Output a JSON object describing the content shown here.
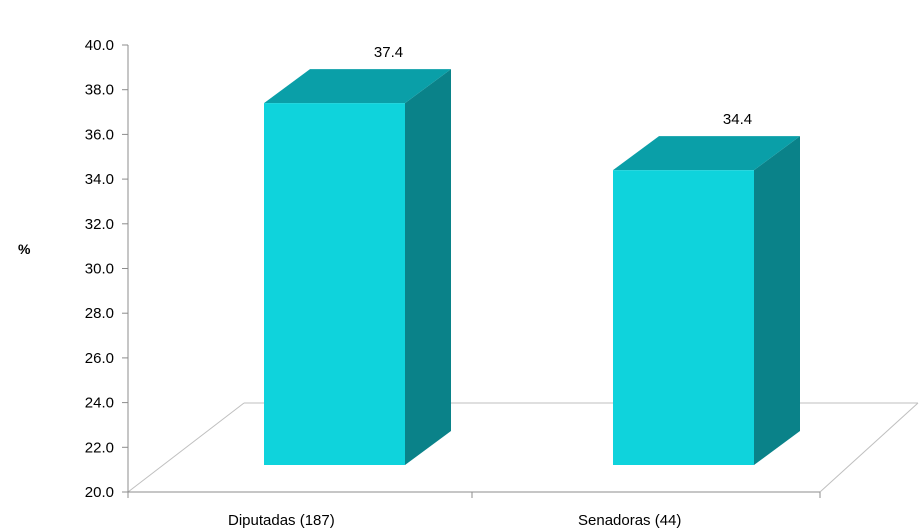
{
  "chart_data": {
    "type": "bar",
    "three_d": true,
    "categories": [
      "Diputadas (187)",
      "Senadoras (44)"
    ],
    "values": [
      37.4,
      34.4
    ],
    "data_labels": [
      "37.4",
      "34.4"
    ],
    "title": "",
    "xlabel": "",
    "ylabel": "%",
    "ylim": [
      20,
      40
    ],
    "y_ticks": [
      "20.0",
      "22.0",
      "24.0",
      "26.0",
      "28.0",
      "30.0",
      "32.0",
      "34.0",
      "36.0",
      "38.0",
      "40.0"
    ],
    "grid": false,
    "legend": "none"
  },
  "colors": {
    "bar_front": "#0fd3dc",
    "bar_top": "#0a9fa8",
    "bar_side": "#0a8289",
    "axis": "#8c8c8c",
    "floor": "#bfbfbf"
  }
}
